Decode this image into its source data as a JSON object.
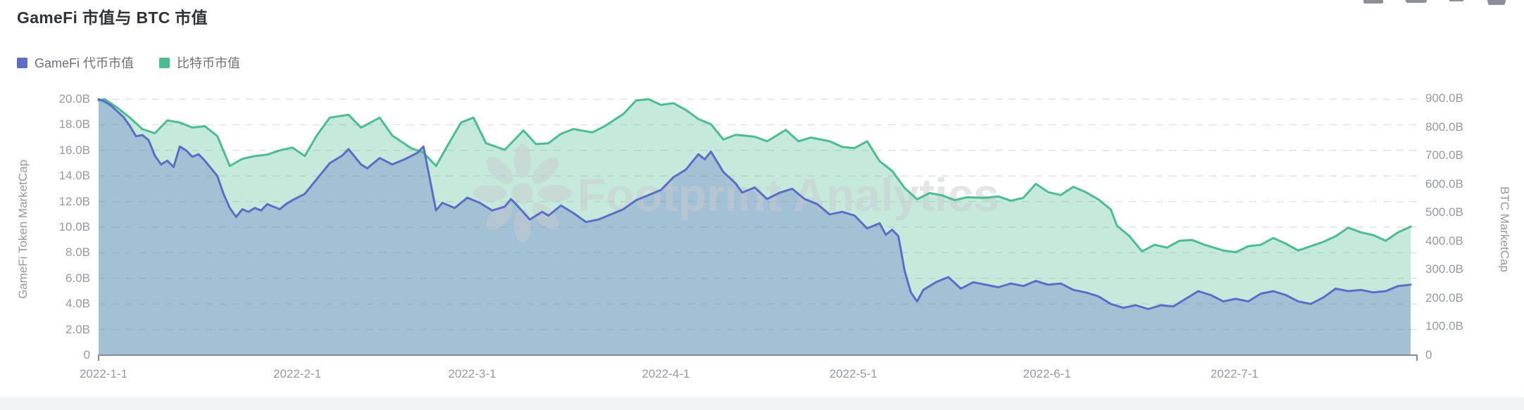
{
  "header": {
    "title": "GameFi 市值与 BTC 市值"
  },
  "toolbar": {
    "icons": [
      {
        "name": "chart-style-icon",
        "shape": "rect-clipped"
      },
      {
        "name": "screenshot-icon",
        "shape": "notched-rect-clipped"
      },
      {
        "name": "collapse-icon",
        "shape": "thin-bar-clipped"
      },
      {
        "name": "help-circle-icon",
        "shape": "half-circle-clipped"
      }
    ]
  },
  "legend": [
    {
      "label": "GameFi 代币市值",
      "color": "#5E6BC9"
    },
    {
      "label": "比特币市值",
      "color": "#4ABD90"
    }
  ],
  "watermark": {
    "text": "Footprint Analytics",
    "logo": "footprint-flower-logo",
    "color": "#c9ccd1"
  },
  "colors": {
    "gamefi_line": "#5A6EC8",
    "gamefi_fill": "rgba(90,110,200,0.33)",
    "btc_line": "#4BBD90",
    "btc_fill": "rgba(76,189,144,0.32)",
    "grid": "#e0e2e6",
    "axis_line": "#878c94",
    "tick_text": "#9599a1"
  },
  "chart_data": {
    "type": "area",
    "title": "GameFi 市值与 BTC 市值",
    "grid": "dashed-horizontal",
    "legend_position": "top-left",
    "x_axis": {
      "start_date": "2022-1-1",
      "end_date": "2022-7-31",
      "tick_labels": [
        "2022-1-1",
        "2022-2-1",
        "2022-3-1",
        "2022-4-1",
        "2022-5-1",
        "2022-6-1",
        "2022-7-1"
      ],
      "tick_day_offsets": [
        0,
        31,
        59,
        90,
        120,
        151,
        181
      ],
      "total_days": 211
    },
    "y_left": {
      "label": "GameFi Token MarketCap",
      "unit": "billion USD",
      "min": 0,
      "max": 20,
      "tick_labels_top_to_bottom": [
        "20.0B",
        "18.0B",
        "16.0B",
        "14.0B",
        "12.0B",
        "10.0B",
        "8.0B",
        "6.0B",
        "4.0B",
        "2.0B",
        "0"
      ]
    },
    "y_right": {
      "label": "BTC MarketCap",
      "unit": "billion USD",
      "min": 0,
      "max": 900,
      "tick_labels_top_to_bottom": [
        "900.0B",
        "800.0B",
        "700.0B",
        "600.0B",
        "500.0B",
        "400.0B",
        "300.0B",
        "200.0B",
        "100.0B",
        "0"
      ]
    },
    "series": [
      {
        "name": "比特币市值",
        "axis": "right",
        "color": "#4BBD90",
        "fill": "rgba(76,189,144,0.32)",
        "points_day_value": [
          [
            0,
            895
          ],
          [
            1,
            900
          ],
          [
            3,
            870
          ],
          [
            5,
            835
          ],
          [
            7,
            795
          ],
          [
            9,
            780
          ],
          [
            11,
            825
          ],
          [
            13,
            818
          ],
          [
            15,
            800
          ],
          [
            17,
            805
          ],
          [
            19,
            770
          ],
          [
            21,
            665
          ],
          [
            23,
            690
          ],
          [
            25,
            700
          ],
          [
            27,
            705
          ],
          [
            29,
            720
          ],
          [
            31,
            730
          ],
          [
            33,
            700
          ],
          [
            35,
            775
          ],
          [
            37,
            835
          ],
          [
            40,
            845
          ],
          [
            42,
            800
          ],
          [
            45,
            835
          ],
          [
            47,
            772
          ],
          [
            50,
            728
          ],
          [
            52,
            712
          ],
          [
            54,
            665
          ],
          [
            56,
            742
          ],
          [
            58,
            818
          ],
          [
            60,
            835
          ],
          [
            62,
            745
          ],
          [
            65,
            722
          ],
          [
            68,
            790
          ],
          [
            70,
            742
          ],
          [
            72,
            745
          ],
          [
            74,
            778
          ],
          [
            76,
            795
          ],
          [
            79,
            783
          ],
          [
            81,
            805
          ],
          [
            84,
            848
          ],
          [
            86,
            895
          ],
          [
            88,
            900
          ],
          [
            90,
            880
          ],
          [
            92,
            886
          ],
          [
            94,
            862
          ],
          [
            96,
            830
          ],
          [
            98,
            812
          ],
          [
            100,
            758
          ],
          [
            102,
            775
          ],
          [
            105,
            768
          ],
          [
            107,
            752
          ],
          [
            110,
            792
          ],
          [
            112,
            752
          ],
          [
            114,
            765
          ],
          [
            117,
            752
          ],
          [
            119,
            732
          ],
          [
            121,
            728
          ],
          [
            123,
            752
          ],
          [
            125,
            682
          ],
          [
            127,
            648
          ],
          [
            129,
            588
          ],
          [
            131,
            548
          ],
          [
            133,
            570
          ],
          [
            135,
            562
          ],
          [
            137,
            545
          ],
          [
            139,
            555
          ],
          [
            142,
            553
          ],
          [
            144,
            558
          ],
          [
            146,
            543
          ],
          [
            148,
            553
          ],
          [
            150,
            602
          ],
          [
            152,
            573
          ],
          [
            154,
            563
          ],
          [
            156,
            592
          ],
          [
            158,
            573
          ],
          [
            160,
            548
          ],
          [
            162,
            512
          ],
          [
            163,
            455
          ],
          [
            165,
            418
          ],
          [
            167,
            365
          ],
          [
            169,
            388
          ],
          [
            171,
            378
          ],
          [
            173,
            402
          ],
          [
            175,
            405
          ],
          [
            177,
            388
          ],
          [
            180,
            368
          ],
          [
            182,
            362
          ],
          [
            184,
            383
          ],
          [
            186,
            388
          ],
          [
            188,
            412
          ],
          [
            190,
            392
          ],
          [
            192,
            368
          ],
          [
            194,
            383
          ],
          [
            196,
            398
          ],
          [
            198,
            418
          ],
          [
            200,
            448
          ],
          [
            202,
            432
          ],
          [
            204,
            422
          ],
          [
            206,
            402
          ],
          [
            208,
            432
          ],
          [
            210,
            452
          ]
        ]
      },
      {
        "name": "GameFi 代币市值",
        "axis": "left",
        "color": "#5A6EC8",
        "fill": "rgba(90,110,200,0.33)",
        "points_day_value": [
          [
            0,
            20.0
          ],
          [
            1,
            19.8
          ],
          [
            2,
            19.5
          ],
          [
            4,
            18.6
          ],
          [
            5,
            17.9
          ],
          [
            6,
            17.1
          ],
          [
            7,
            17.2
          ],
          [
            8,
            16.8
          ],
          [
            9,
            15.6
          ],
          [
            10,
            14.9
          ],
          [
            11,
            15.2
          ],
          [
            12,
            14.7
          ],
          [
            13,
            16.3
          ],
          [
            14,
            16.0
          ],
          [
            15,
            15.5
          ],
          [
            16,
            15.7
          ],
          [
            17,
            15.2
          ],
          [
            19,
            14.0
          ],
          [
            20,
            12.6
          ],
          [
            21,
            11.5
          ],
          [
            22,
            10.8
          ],
          [
            23,
            11.4
          ],
          [
            24,
            11.2
          ],
          [
            25,
            11.5
          ],
          [
            26,
            11.3
          ],
          [
            27,
            11.8
          ],
          [
            28,
            11.6
          ],
          [
            29,
            11.4
          ],
          [
            30,
            11.8
          ],
          [
            31,
            12.1
          ],
          [
            33,
            12.6
          ],
          [
            35,
            13.8
          ],
          [
            37,
            15.0
          ],
          [
            39,
            15.6
          ],
          [
            40,
            16.1
          ],
          [
            41,
            15.5
          ],
          [
            42,
            14.9
          ],
          [
            43,
            14.6
          ],
          [
            45,
            15.4
          ],
          [
            47,
            14.9
          ],
          [
            49,
            15.3
          ],
          [
            51,
            15.8
          ],
          [
            52,
            16.3
          ],
          [
            54,
            11.3
          ],
          [
            55,
            11.9
          ],
          [
            57,
            11.5
          ],
          [
            59,
            12.3
          ],
          [
            61,
            11.9
          ],
          [
            63,
            11.3
          ],
          [
            65,
            11.6
          ],
          [
            66,
            12.2
          ],
          [
            67,
            11.7
          ],
          [
            69,
            10.6
          ],
          [
            71,
            11.2
          ],
          [
            72,
            10.9
          ],
          [
            74,
            11.7
          ],
          [
            76,
            11.1
          ],
          [
            78,
            10.4
          ],
          [
            80,
            10.6
          ],
          [
            82,
            11.0
          ],
          [
            84,
            11.4
          ],
          [
            86,
            12.1
          ],
          [
            88,
            12.5
          ],
          [
            90,
            12.9
          ],
          [
            92,
            13.9
          ],
          [
            94,
            14.5
          ],
          [
            95,
            15.1
          ],
          [
            96,
            15.7
          ],
          [
            97,
            15.3
          ],
          [
            98,
            15.9
          ],
          [
            100,
            14.3
          ],
          [
            102,
            13.4
          ],
          [
            103,
            12.7
          ],
          [
            105,
            13.1
          ],
          [
            107,
            12.2
          ],
          [
            109,
            12.7
          ],
          [
            111,
            13.0
          ],
          [
            113,
            12.2
          ],
          [
            115,
            11.8
          ],
          [
            117,
            11.0
          ],
          [
            119,
            11.2
          ],
          [
            121,
            10.9
          ],
          [
            123,
            9.9
          ],
          [
            125,
            10.3
          ],
          [
            126,
            9.4
          ],
          [
            127,
            9.8
          ],
          [
            128,
            9.3
          ],
          [
            129,
            6.6
          ],
          [
            130,
            4.9
          ],
          [
            131,
            4.2
          ],
          [
            132,
            5.1
          ],
          [
            134,
            5.7
          ],
          [
            136,
            6.1
          ],
          [
            138,
            5.2
          ],
          [
            140,
            5.7
          ],
          [
            142,
            5.5
          ],
          [
            144,
            5.3
          ],
          [
            146,
            5.6
          ],
          [
            148,
            5.4
          ],
          [
            150,
            5.8
          ],
          [
            152,
            5.5
          ],
          [
            154,
            5.6
          ],
          [
            156,
            5.1
          ],
          [
            158,
            4.9
          ],
          [
            160,
            4.6
          ],
          [
            162,
            4.0
          ],
          [
            164,
            3.7
          ],
          [
            166,
            3.9
          ],
          [
            168,
            3.6
          ],
          [
            170,
            3.9
          ],
          [
            172,
            3.8
          ],
          [
            174,
            4.4
          ],
          [
            176,
            5.0
          ],
          [
            178,
            4.7
          ],
          [
            180,
            4.2
          ],
          [
            182,
            4.4
          ],
          [
            184,
            4.2
          ],
          [
            186,
            4.8
          ],
          [
            188,
            5.0
          ],
          [
            190,
            4.7
          ],
          [
            192,
            4.2
          ],
          [
            194,
            4.0
          ],
          [
            196,
            4.5
          ],
          [
            198,
            5.2
          ],
          [
            200,
            5.0
          ],
          [
            202,
            5.1
          ],
          [
            204,
            4.9
          ],
          [
            206,
            5.0
          ],
          [
            208,
            5.4
          ],
          [
            210,
            5.5
          ]
        ]
      }
    ]
  }
}
